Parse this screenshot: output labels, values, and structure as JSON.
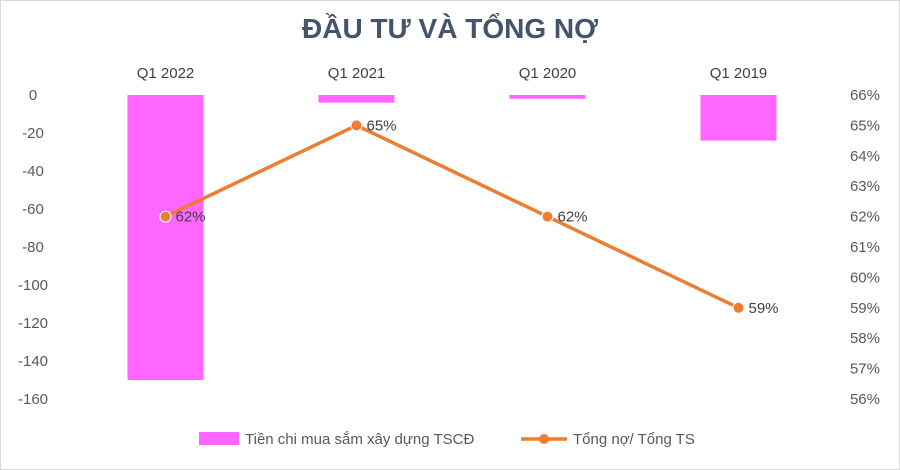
{
  "chart_data": {
    "type": "bar+line",
    "title": "ĐẦU TƯ VÀ TỔNG NỢ",
    "categories": [
      "Q1 2022",
      "Q1 2021",
      "Q1 2020",
      "Q1 2019"
    ],
    "series": [
      {
        "name": "Tiền chi mua sắm xây dựng TSCĐ",
        "type": "bar",
        "axis": "left",
        "values": [
          -150,
          -4,
          -2,
          -24
        ],
        "color": "#ff66ff"
      },
      {
        "name": "Tổng nợ/ Tổng TS",
        "type": "line",
        "axis": "right",
        "values": [
          62,
          65,
          62,
          59
        ],
        "value_labels": [
          "62%",
          "65%",
          "62%",
          "59%"
        ],
        "color": "#ed7d31"
      }
    ],
    "left_axis": {
      "ylim": [
        -160,
        0
      ],
      "ticks": [
        0,
        -20,
        -40,
        -60,
        -80,
        -100,
        -120,
        -140,
        -160
      ],
      "tick_labels": [
        "0",
        "-20",
        "-40",
        "-60",
        "-80",
        "-100",
        "-120",
        "-140",
        "-160"
      ]
    },
    "right_axis": {
      "ylim": [
        56,
        66
      ],
      "ticks": [
        66,
        65,
        64,
        63,
        62,
        61,
        60,
        59,
        58,
        57,
        56
      ],
      "tick_labels": [
        "66%",
        "65%",
        "64%",
        "63%",
        "62%",
        "61%",
        "60%",
        "59%",
        "58%",
        "57%",
        "56%"
      ]
    },
    "grid": false,
    "legend_position": "bottom"
  }
}
